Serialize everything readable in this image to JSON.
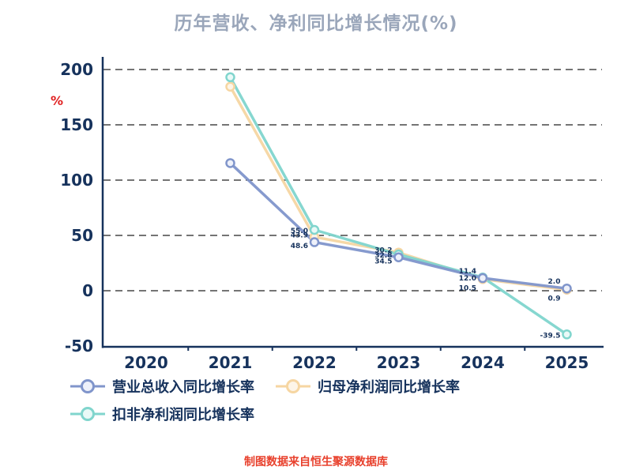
{
  "chart_data": {
    "type": "line",
    "title": "历年营收、净利同比增长情况(%)",
    "ylabel": "%",
    "categories": [
      "2020",
      "2021",
      "2022",
      "2023",
      "2024",
      "2025"
    ],
    "ylim": [
      -50,
      200
    ],
    "yticks": [
      200,
      150,
      100,
      50,
      0,
      -50
    ],
    "grid": "horizontal-dashed",
    "legend_position": "bottom-left",
    "series": [
      {
        "key": "revenue-yoy",
        "name": "营业总收入同比增长率",
        "color": "#8095cb",
        "marker_fill": "#eef1fa",
        "values": [
          null,
          115.4,
          43.9,
          30.2,
          11.4,
          2.0
        ]
      },
      {
        "key": "net-profit-yoy",
        "name": "归母净利润同比增长率",
        "color": "#f6d6a2",
        "marker_fill": "#fdf5e8",
        "values": [
          null,
          184.5,
          48.6,
          34.5,
          10.5,
          0.9
        ]
      },
      {
        "key": "non-gaap-net-profit-yoy",
        "name": "扣非净利润同比增长率",
        "color": "#80d5cd",
        "marker_fill": "#e9f9f7",
        "values": [
          null,
          193.0,
          55.0,
          32.8,
          12.0,
          -39.5
        ]
      }
    ],
    "footer": "制图数据来自恒生聚源数据库",
    "colors": {
      "axis": "#16325c",
      "grid": "#222222",
      "title": "#9aa6ba",
      "unit_label": "#e02020",
      "footer": "#e8402c"
    }
  }
}
